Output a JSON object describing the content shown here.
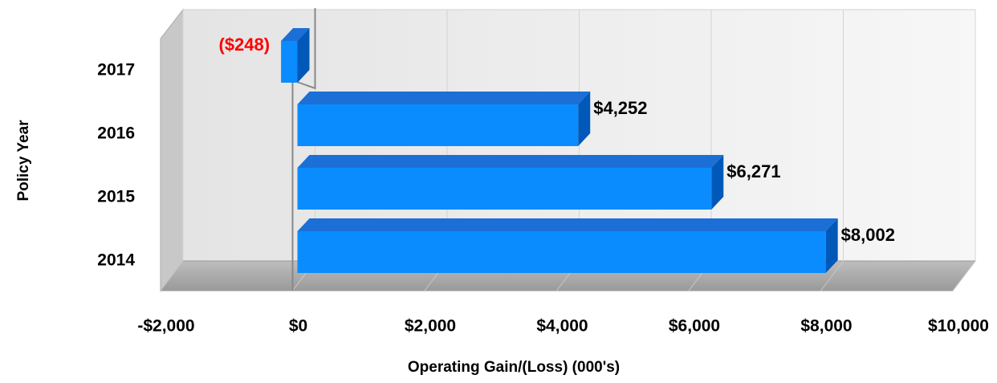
{
  "chart_data": {
    "type": "bar",
    "orientation": "horizontal",
    "categories": [
      "2014",
      "2015",
      "2016",
      "2017"
    ],
    "values": [
      8002,
      6271,
      4252,
      -248
    ],
    "value_labels": [
      "$8,002",
      "$6,271",
      "$4,252",
      "($248)"
    ],
    "value_label_colors": [
      "#000000",
      "#000000",
      "#000000",
      "#ff0000"
    ],
    "color": "#0a8cff",
    "xlim": [
      -2000,
      10000
    ],
    "xticks": [
      {
        "value": -2000,
        "label": "-$2,000"
      },
      {
        "value": 0,
        "label": "$0"
      },
      {
        "value": 2000,
        "label": "$2,000"
      },
      {
        "value": 4000,
        "label": "$4,000"
      },
      {
        "value": 6000,
        "label": "$6,000"
      },
      {
        "value": 8000,
        "label": "$8,000"
      },
      {
        "value": 10000,
        "label": "$10,000"
      }
    ],
    "x_label": "Operating Gain/(Loss) (000's)",
    "y_label": "Policy Year",
    "grid": true
  }
}
